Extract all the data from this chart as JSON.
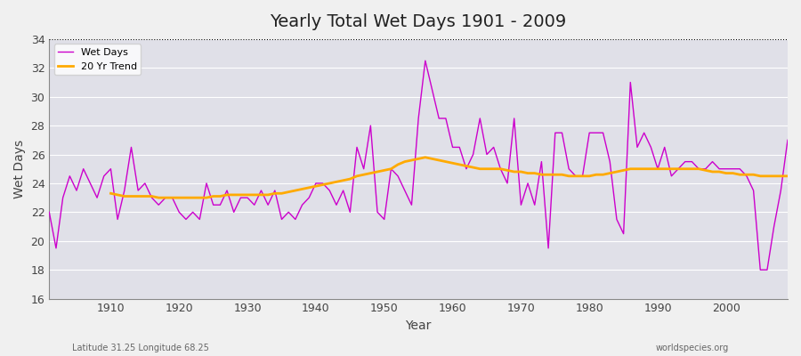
{
  "title": "Yearly Total Wet Days 1901 - 2009",
  "xlabel": "Year",
  "ylabel": "Wet Days",
  "subtitle_left": "Latitude 31.25 Longitude 68.25",
  "subtitle_right": "worldspecies.org",
  "ylim": [
    16,
    34
  ],
  "yticks": [
    16,
    18,
    20,
    22,
    24,
    26,
    28,
    30,
    32,
    34
  ],
  "xlim": [
    1901,
    2009
  ],
  "bg_color": "#e0e0e8",
  "line_color_wet": "#cc00cc",
  "line_color_trend": "#ffaa00",
  "legend_wet": "Wet Days",
  "legend_trend": "20 Yr Trend",
  "years": [
    1901,
    1902,
    1903,
    1904,
    1905,
    1906,
    1907,
    1908,
    1909,
    1910,
    1911,
    1912,
    1913,
    1914,
    1915,
    1916,
    1917,
    1918,
    1919,
    1920,
    1921,
    1922,
    1923,
    1924,
    1925,
    1926,
    1927,
    1928,
    1929,
    1930,
    1931,
    1932,
    1933,
    1934,
    1935,
    1936,
    1937,
    1938,
    1939,
    1940,
    1941,
    1942,
    1943,
    1944,
    1945,
    1946,
    1947,
    1948,
    1949,
    1950,
    1951,
    1952,
    1953,
    1954,
    1955,
    1956,
    1957,
    1958,
    1959,
    1960,
    1961,
    1962,
    1963,
    1964,
    1965,
    1966,
    1967,
    1968,
    1969,
    1970,
    1971,
    1972,
    1973,
    1974,
    1975,
    1976,
    1977,
    1978,
    1979,
    1980,
    1981,
    1982,
    1983,
    1984,
    1985,
    1986,
    1987,
    1988,
    1989,
    1990,
    1991,
    1992,
    1993,
    1994,
    1995,
    1996,
    1997,
    1998,
    1999,
    2000,
    2001,
    2002,
    2003,
    2004,
    2005,
    2006,
    2007,
    2008,
    2009
  ],
  "wet_days": [
    22.0,
    19.5,
    23.0,
    24.5,
    23.5,
    25.0,
    24.0,
    23.0,
    24.5,
    25.0,
    21.5,
    23.5,
    26.5,
    23.5,
    24.0,
    23.0,
    22.5,
    23.0,
    23.0,
    22.0,
    21.5,
    22.0,
    21.5,
    24.0,
    22.5,
    22.5,
    23.5,
    22.0,
    23.0,
    23.0,
    22.5,
    23.5,
    22.5,
    23.5,
    21.5,
    22.0,
    21.5,
    22.5,
    23.0,
    24.0,
    24.0,
    23.5,
    22.5,
    23.5,
    22.0,
    26.5,
    25.0,
    28.0,
    22.0,
    21.5,
    25.0,
    24.5,
    23.5,
    22.5,
    28.5,
    32.5,
    30.5,
    28.5,
    28.5,
    26.5,
    26.5,
    25.0,
    26.0,
    28.5,
    26.0,
    26.5,
    25.0,
    24.0,
    28.5,
    22.5,
    24.0,
    22.5,
    25.5,
    19.5,
    27.5,
    27.5,
    25.0,
    24.5,
    24.5,
    27.5,
    27.5,
    27.5,
    25.5,
    21.5,
    20.5,
    31.0,
    26.5,
    27.5,
    26.5,
    25.0,
    26.5,
    24.5,
    25.0,
    25.5,
    25.5,
    25.0,
    25.0,
    25.5,
    25.0,
    25.0,
    25.0,
    25.0,
    24.5,
    23.5,
    18.0,
    18.0,
    21.0,
    23.5,
    27.0
  ],
  "trend_years": [
    1910,
    1911,
    1912,
    1913,
    1914,
    1915,
    1916,
    1917,
    1918,
    1919,
    1920,
    1921,
    1922,
    1923,
    1924,
    1925,
    1926,
    1927,
    1928,
    1929,
    1930,
    1931,
    1932,
    1933,
    1934,
    1935,
    1936,
    1937,
    1938,
    1939,
    1940,
    1941,
    1942,
    1943,
    1944,
    1945,
    1946,
    1947,
    1948,
    1949,
    1950,
    1951,
    1952,
    1953,
    1954,
    1955,
    1956,
    1957,
    1958,
    1959,
    1960,
    1961,
    1962,
    1963,
    1964,
    1965,
    1966,
    1967,
    1968,
    1969,
    1970,
    1971,
    1972,
    1973,
    1974,
    1975,
    1976,
    1977,
    1978,
    1979,
    1980,
    1981,
    1982,
    1983,
    1984,
    1985,
    1986,
    1987,
    1988,
    1989,
    1990,
    1991,
    1992,
    1993,
    1994,
    1995,
    1996,
    1997,
    1998,
    1999,
    2000,
    2001,
    2002,
    2003,
    2004,
    2005,
    2006,
    2007,
    2008,
    2009
  ],
  "trend_values": [
    23.3,
    23.2,
    23.1,
    23.1,
    23.1,
    23.1,
    23.1,
    23.0,
    23.0,
    23.0,
    23.0,
    23.0,
    23.0,
    23.0,
    23.0,
    23.1,
    23.1,
    23.2,
    23.2,
    23.2,
    23.2,
    23.2,
    23.2,
    23.2,
    23.3,
    23.3,
    23.4,
    23.5,
    23.6,
    23.7,
    23.8,
    23.9,
    24.0,
    24.1,
    24.2,
    24.3,
    24.5,
    24.6,
    24.7,
    24.8,
    24.9,
    25.0,
    25.3,
    25.5,
    25.6,
    25.7,
    25.8,
    25.7,
    25.6,
    25.5,
    25.4,
    25.3,
    25.2,
    25.1,
    25.0,
    25.0,
    25.0,
    25.0,
    24.9,
    24.8,
    24.8,
    24.7,
    24.7,
    24.6,
    24.6,
    24.6,
    24.6,
    24.5,
    24.5,
    24.5,
    24.5,
    24.6,
    24.6,
    24.7,
    24.8,
    24.9,
    25.0,
    25.0,
    25.0,
    25.0,
    25.0,
    25.0,
    25.0,
    25.0,
    25.0,
    25.0,
    25.0,
    24.9,
    24.8,
    24.8,
    24.7,
    24.7,
    24.6,
    24.6,
    24.6,
    24.5,
    24.5,
    24.5,
    24.5,
    24.5
  ]
}
